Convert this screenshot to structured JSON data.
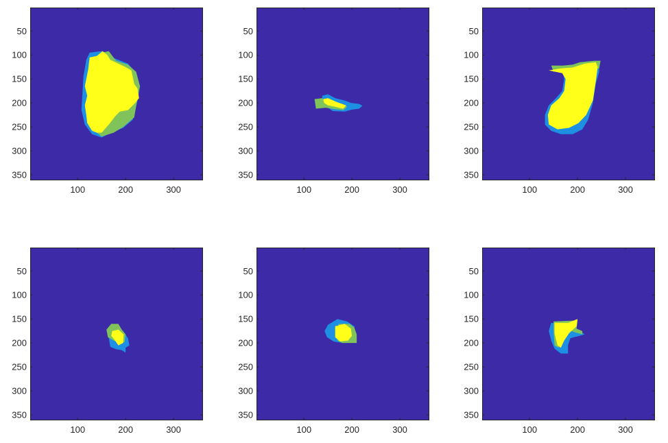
{
  "figure": {
    "layout": "2x3 image-subplot grid",
    "colors": {
      "background": "#3d2aa7",
      "blue": "#1e90e4",
      "green": "#7fc35a",
      "yellow": "#ffff1a",
      "axis": "#262626"
    }
  },
  "chart_data": [
    {
      "type": "heatmap",
      "panel": 1,
      "xlim": [
        1,
        360
      ],
      "ylim": [
        1,
        360
      ],
      "y_reversed": true,
      "xticks": [
        "100",
        "200",
        "300"
      ],
      "yticks": [
        "50",
        "100",
        "150",
        "200",
        "250",
        "300",
        "350"
      ],
      "regions": [
        {
          "class": "blue",
          "polygon": [
            [
              125,
              95
            ],
            [
              150,
              92
            ],
            [
              172,
              105
            ],
            [
              205,
              118
            ],
            [
              222,
              138
            ],
            [
              230,
              165
            ],
            [
              225,
              195
            ],
            [
              215,
              235
            ],
            [
              195,
              252
            ],
            [
              170,
              262
            ],
            [
              150,
              272
            ],
            [
              130,
              265
            ],
            [
              115,
              245
            ],
            [
              108,
              215
            ],
            [
              110,
              180
            ],
            [
              112,
              145
            ],
            [
              118,
              110
            ]
          ]
        },
        {
          "class": "green",
          "polygon": [
            [
              150,
              95
            ],
            [
              165,
              92
            ],
            [
              180,
              112
            ],
            [
              205,
              120
            ],
            [
              222,
              135
            ],
            [
              230,
              165
            ],
            [
              225,
              190
            ],
            [
              218,
              230
            ],
            [
              195,
              250
            ],
            [
              175,
              262
            ],
            [
              150,
              270
            ],
            [
              140,
              262
            ],
            [
              160,
              220
            ],
            [
              175,
              175
            ],
            [
              165,
              140
            ],
            [
              150,
              120
            ]
          ]
        },
        {
          "class": "yellow",
          "polygon": [
            [
              152,
              92
            ],
            [
              162,
              100
            ],
            [
              168,
              110
            ],
            [
              200,
              125
            ],
            [
              212,
              132
            ],
            [
              218,
              160
            ],
            [
              225,
              170
            ],
            [
              228,
              190
            ],
            [
              220,
              200
            ],
            [
              205,
              215
            ],
            [
              188,
              218
            ],
            [
              178,
              228
            ],
            [
              165,
              245
            ],
            [
              150,
              262
            ],
            [
              140,
              262
            ],
            [
              130,
              258
            ],
            [
              120,
              242
            ],
            [
              118,
              225
            ],
            [
              115,
              205
            ],
            [
              120,
              185
            ],
            [
              115,
              165
            ],
            [
              122,
              130
            ],
            [
              125,
              105
            ],
            [
              140,
              102
            ]
          ]
        }
      ]
    },
    {
      "type": "heatmap",
      "panel": 2,
      "xlim": [
        1,
        360
      ],
      "ylim": [
        1,
        360
      ],
      "y_reversed": true,
      "xticks": [
        "100",
        "200",
        "300"
      ],
      "yticks": [
        "50",
        "100",
        "150",
        "200",
        "250",
        "300",
        "350"
      ],
      "regions": [
        {
          "class": "blue",
          "polygon": [
            [
              138,
              185
            ],
            [
              150,
              182
            ],
            [
              165,
              190
            ],
            [
              185,
              195
            ],
            [
              198,
              200
            ],
            [
              215,
              202
            ],
            [
              222,
              206
            ],
            [
              215,
              212
            ],
            [
              200,
              214
            ],
            [
              185,
              218
            ],
            [
              160,
              217
            ],
            [
              150,
              210
            ],
            [
              138,
              203
            ]
          ]
        },
        {
          "class": "green",
          "polygon": [
            [
              122,
              192
            ],
            [
              138,
              190
            ],
            [
              145,
              200
            ],
            [
              160,
              205
            ],
            [
              180,
              202
            ],
            [
              190,
              208
            ],
            [
              182,
              215
            ],
            [
              165,
              213
            ],
            [
              145,
              210
            ],
            [
              125,
              212
            ]
          ]
        },
        {
          "class": "yellow",
          "polygon": [
            [
              140,
              192
            ],
            [
              150,
              190
            ],
            [
              168,
              198
            ],
            [
              188,
              205
            ],
            [
              182,
              212
            ],
            [
              165,
              208
            ],
            [
              150,
              205
            ],
            [
              142,
              200
            ]
          ]
        }
      ]
    },
    {
      "type": "heatmap",
      "panel": 3,
      "xlim": [
        1,
        360
      ],
      "ylim": [
        1,
        360
      ],
      "y_reversed": true,
      "xticks": [
        "100",
        "200",
        "300"
      ],
      "yticks": [
        "50",
        "100",
        "150",
        "200",
        "250",
        "300",
        "350"
      ],
      "regions": [
        {
          "class": "blue",
          "polygon": [
            [
              168,
              128
            ],
            [
              235,
              115
            ],
            [
              245,
              115
            ],
            [
              245,
              135
            ],
            [
              238,
              160
            ],
            [
              232,
              200
            ],
            [
              222,
              235
            ],
            [
              210,
              255
            ],
            [
              190,
              265
            ],
            [
              165,
              265
            ],
            [
              145,
              258
            ],
            [
              132,
              245
            ],
            [
              132,
              225
            ],
            [
              140,
              205
            ],
            [
              155,
              190
            ],
            [
              168,
              175
            ],
            [
              172,
              150
            ]
          ]
        },
        {
          "class": "green",
          "polygon": [
            [
              145,
              122
            ],
            [
              170,
              122
            ],
            [
              190,
              120
            ],
            [
              205,
              115
            ],
            [
              235,
              112
            ],
            [
              248,
              112
            ],
            [
              245,
              128
            ],
            [
              220,
              130
            ],
            [
              195,
              132
            ],
            [
              170,
              132
            ],
            [
              150,
              135
            ]
          ]
        },
        {
          "class": "yellow",
          "polygon": [
            [
              140,
              132
            ],
            [
              165,
              128
            ],
            [
              190,
              126
            ],
            [
              215,
              118
            ],
            [
              238,
              115
            ],
            [
              242,
              125
            ],
            [
              238,
              155
            ],
            [
              232,
              195
            ],
            [
              218,
              225
            ],
            [
              202,
              242
            ],
            [
              182,
              252
            ],
            [
              158,
              255
            ],
            [
              140,
              245
            ],
            [
              138,
              225
            ],
            [
              145,
              205
            ],
            [
              162,
              190
            ],
            [
              172,
              175
            ],
            [
              175,
              150
            ],
            [
              168,
              138
            ]
          ]
        }
      ]
    },
    {
      "type": "heatmap",
      "panel": 4,
      "xlim": [
        1,
        360
      ],
      "ylim": [
        1,
        360
      ],
      "y_reversed": true,
      "xticks": [
        "100",
        "200",
        "300"
      ],
      "yticks": [
        "50",
        "100",
        "150",
        "200",
        "250",
        "300",
        "350"
      ],
      "regions": [
        {
          "class": "blue",
          "polygon": [
            [
              165,
              168
            ],
            [
              180,
              165
            ],
            [
              195,
              175
            ],
            [
              205,
              190
            ],
            [
              208,
              205
            ],
            [
              200,
              210
            ],
            [
              200,
              220
            ],
            [
              192,
              215
            ],
            [
              180,
              213
            ],
            [
              168,
              208
            ],
            [
              165,
              190
            ]
          ]
        },
        {
          "class": "green",
          "polygon": [
            [
              170,
              160
            ],
            [
              185,
              160
            ],
            [
              192,
              172
            ],
            [
              200,
              182
            ],
            [
              198,
              198
            ],
            [
              188,
              200
            ],
            [
              175,
              195
            ],
            [
              163,
              188
            ],
            [
              160,
              172
            ]
          ]
        },
        {
          "class": "yellow",
          "polygon": [
            [
              172,
              175
            ],
            [
              185,
              172
            ],
            [
              196,
              182
            ],
            [
              195,
              200
            ],
            [
              185,
              205
            ],
            [
              178,
              195
            ],
            [
              170,
              185
            ]
          ]
        }
      ]
    },
    {
      "type": "heatmap",
      "panel": 5,
      "xlim": [
        1,
        360
      ],
      "ylim": [
        1,
        360
      ],
      "y_reversed": true,
      "xticks": [
        "100",
        "200",
        "300"
      ],
      "yticks": [
        "50",
        "100",
        "150",
        "200",
        "250",
        "300",
        "350"
      ],
      "regions": [
        {
          "class": "blue",
          "polygon": [
            [
              150,
              162
            ],
            [
              170,
              150
            ],
            [
              190,
              155
            ],
            [
              205,
              165
            ],
            [
              208,
              185
            ],
            [
              200,
              198
            ],
            [
              182,
              200
            ],
            [
              162,
              197
            ],
            [
              148,
              188
            ],
            [
              143,
              175
            ]
          ]
        },
        {
          "class": "green",
          "polygon": [
            [
              172,
              160
            ],
            [
              195,
              160
            ],
            [
              205,
              168
            ],
            [
              210,
              182
            ],
            [
              210,
              200
            ],
            [
              180,
              200
            ],
            [
              170,
              195
            ]
          ]
        },
        {
          "class": "yellow",
          "polygon": [
            [
              165,
              165
            ],
            [
              185,
              160
            ],
            [
              198,
              170
            ],
            [
              200,
              185
            ],
            [
              192,
              195
            ],
            [
              175,
              197
            ],
            [
              165,
              188
            ]
          ]
        }
      ]
    },
    {
      "type": "heatmap",
      "panel": 6,
      "xlim": [
        1,
        360
      ],
      "ylim": [
        1,
        360
      ],
      "y_reversed": true,
      "xticks": [
        "100",
        "200",
        "300"
      ],
      "yticks": [
        "50",
        "100",
        "150",
        "200",
        "250",
        "300",
        "350"
      ],
      "regions": [
        {
          "class": "blue",
          "polygon": [
            [
              145,
              158
            ],
            [
              160,
              160
            ],
            [
              182,
              172
            ],
            [
              205,
              175
            ],
            [
              215,
              182
            ],
            [
              205,
              185
            ],
            [
              185,
              190
            ],
            [
              180,
              205
            ],
            [
              180,
              222
            ],
            [
              165,
              222
            ],
            [
              152,
              212
            ],
            [
              145,
              195
            ],
            [
              140,
              175
            ]
          ]
        },
        {
          "class": "green",
          "polygon": [
            [
              150,
              155
            ],
            [
              200,
              153
            ],
            [
              198,
              170
            ],
            [
              210,
              175
            ],
            [
              210,
              182
            ],
            [
              195,
              178
            ],
            [
              180,
              172
            ],
            [
              165,
              190
            ],
            [
              160,
              210
            ],
            [
              152,
              205
            ],
            [
              150,
              175
            ]
          ]
        },
        {
          "class": "yellow",
          "polygon": [
            [
              152,
              158
            ],
            [
              180,
              158
            ],
            [
              200,
              150
            ],
            [
              198,
              165
            ],
            [
              182,
              180
            ],
            [
              172,
              195
            ],
            [
              165,
              210
            ],
            [
              158,
              205
            ],
            [
              152,
              180
            ]
          ]
        }
      ]
    }
  ]
}
